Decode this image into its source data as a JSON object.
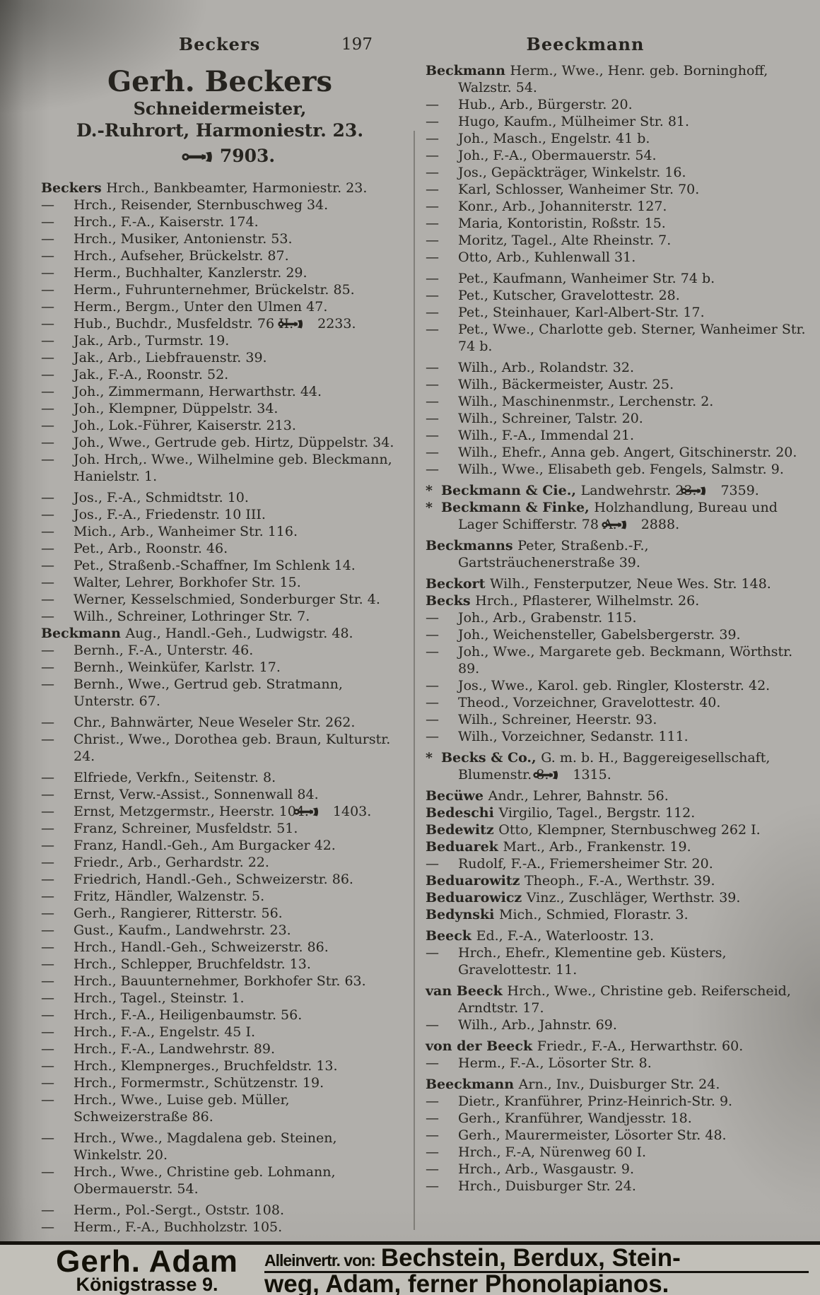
{
  "page": {
    "left_running_title": "Beckers",
    "page_number": "197",
    "right_running_title": "Beeckmann"
  },
  "colors": {
    "paper": "#b1afab",
    "ink": "#26241f",
    "ad_background": "#c2c0b9",
    "rule": "#15130e"
  },
  "icons": {
    "phone": "phone-icon"
  },
  "left_column": {
    "ad": {
      "name": "Gerh. Beckers",
      "profession": "Schneidermeister,",
      "address": "D.-Ruhrort, Harmoniestr. 23.",
      "phone": "7903."
    },
    "entries": [
      {
        "lead": "Beckers",
        "text": "Hrch., Bankbeamter, Harmoniestr. 23."
      },
      {
        "dash": true,
        "text": "Hrch., Reisender, Sternbuschweg 34."
      },
      {
        "dash": true,
        "text": "Hrch., F.-A., Kaiserstr. 174."
      },
      {
        "dash": true,
        "text": "Hrch., Musiker, Antonienstr. 53."
      },
      {
        "dash": true,
        "text": "Hrch., Aufseher, Brückelstr. 87."
      },
      {
        "dash": true,
        "text": "Herm., Buchhalter, Kanzlerstr. 29."
      },
      {
        "dash": true,
        "text": "Herm., Fuhrunternehmer, Brückelstr. 85."
      },
      {
        "dash": true,
        "text": "Herm., Bergm., Unter den Ulmen 47."
      },
      {
        "dash": true,
        "text": "Hub., Buchdr., Musfeldstr. 76 II.",
        "phone": "2233."
      },
      {
        "dash": true,
        "text": "Jak., Arb., Turmstr. 19."
      },
      {
        "dash": true,
        "text": "Jak., Arb., Liebfrauenstr. 39."
      },
      {
        "dash": true,
        "text": "Jak., F.-A., Roonstr. 52."
      },
      {
        "dash": true,
        "text": "Joh., Zimmermann, Herwarthstr. 44."
      },
      {
        "dash": true,
        "text": "Joh., Klempner, Düppelstr. 34."
      },
      {
        "dash": true,
        "text": "Joh., Lok.-Führer, Kaiserstr. 213."
      },
      {
        "dash": true,
        "text": "Joh., Wwe., Gertrude geb. Hirtz, Düppelstr. 34."
      },
      {
        "dash": true,
        "text": "Joh. Hrch,. Wwe., Wilhelmine geb. Bleckmann, Hanielstr. 1."
      },
      {
        "dash": true,
        "gap": true,
        "text": "Jos., F.-A., Schmidtstr. 10."
      },
      {
        "dash": true,
        "text": "Jos., F.-A., Friedenstr. 10 III."
      },
      {
        "dash": true,
        "text": "Mich., Arb., Wanheimer Str. 116."
      },
      {
        "dash": true,
        "text": "Pet., Arb., Roonstr. 46."
      },
      {
        "dash": true,
        "text": "Pet., Straßenb.-Schaffner, Im Schlenk 14."
      },
      {
        "dash": true,
        "text": "Walter, Lehrer, Borkhofer Str. 15."
      },
      {
        "dash": true,
        "text": "Werner, Kesselschmied, Sonderburger Str. 4."
      },
      {
        "dash": true,
        "text": "Wilh., Schreiner, Lothringer Str. 7."
      },
      {
        "lead": "Beckmann",
        "text": "Aug., Handl.-Geh., Ludwigstr. 48."
      },
      {
        "dash": true,
        "text": "Bernh., F.-A., Unterstr. 46."
      },
      {
        "dash": true,
        "text": "Bernh., Weinküfer, Karlstr. 17."
      },
      {
        "dash": true,
        "text": "Bernh., Wwe., Gertrud geb. Stratmann, Unterstr. 67."
      },
      {
        "dash": true,
        "gap": true,
        "text": "Chr., Bahnwärter, Neue Weseler Str. 262."
      },
      {
        "dash": true,
        "text": "Christ., Wwe., Dorothea geb. Braun, Kulturstr. 24."
      },
      {
        "dash": true,
        "gap": true,
        "text": "Elfriede, Verkfn., Seitenstr. 8."
      },
      {
        "dash": true,
        "text": "Ernst, Verw.-Assist., Sonnenwall 84."
      },
      {
        "dash": true,
        "text": "Ernst, Metzgermstr., Heerstr. 104.",
        "phone": "1403."
      },
      {
        "dash": true,
        "text": "Franz, Schreiner, Musfeldstr. 51."
      },
      {
        "dash": true,
        "text": "Franz, Handl.-Geh., Am Burgacker 42."
      },
      {
        "dash": true,
        "text": "Friedr., Arb., Gerhardstr. 22."
      },
      {
        "dash": true,
        "text": "Friedrich, Handl.-Geh., Schweizerstr. 86."
      },
      {
        "dash": true,
        "text": "Fritz, Händler, Walzenstr. 5."
      },
      {
        "dash": true,
        "text": "Gerh., Rangierer, Ritterstr. 56."
      },
      {
        "dash": true,
        "text": "Gust., Kaufm., Landwehrstr. 23."
      },
      {
        "dash": true,
        "text": "Hrch., Handl.-Geh., Schweizerstr. 86."
      },
      {
        "dash": true,
        "text": "Hrch., Schlepper, Bruchfeldstr. 13."
      },
      {
        "dash": true,
        "text": "Hrch., Bauunternehmer, Borkhofer Str. 63."
      },
      {
        "dash": true,
        "text": "Hrch., Tagel., Steinstr. 1."
      },
      {
        "dash": true,
        "text": "Hrch., F.-A., Heiligenbaumstr. 56."
      },
      {
        "dash": true,
        "text": "Hrch., F.-A., Engelstr. 45 I."
      },
      {
        "dash": true,
        "text": "Hrch., F.-A., Landwehrstr. 89."
      },
      {
        "dash": true,
        "text": "Hrch., Klempnerges., Bruchfeldstr. 13."
      },
      {
        "dash": true,
        "text": "Hrch., Formermstr., Schützenstr. 19."
      },
      {
        "dash": true,
        "text": "Hrch., Wwe., Luise geb. Müller, Schweizerstraße 86."
      },
      {
        "dash": true,
        "gap": true,
        "text": "Hrch., Wwe., Magdalena geb. Steinen, Winkelstr. 20."
      },
      {
        "dash": true,
        "text": "Hrch., Wwe., Christine geb. Lohmann, Obermauerstr. 54."
      },
      {
        "dash": true,
        "gap": true,
        "text": "Herm., Pol.-Sergt., Oststr. 108."
      },
      {
        "dash": true,
        "text": "Herm., F.-A., Buchholzstr. 105."
      }
    ]
  },
  "right_column": {
    "entries": [
      {
        "lead": "Beckmann",
        "text": "Herm., Wwe., Henr. geb. Borninghoff, Walzstr. 54."
      },
      {
        "dash": true,
        "text": "Hub., Arb., Bürgerstr. 20."
      },
      {
        "dash": true,
        "text": "Hugo, Kaufm., Mülheimer Str. 81."
      },
      {
        "dash": true,
        "text": "Joh., Masch., Engelstr. 41 b."
      },
      {
        "dash": true,
        "text": "Joh., F.-A., Obermauerstr. 54."
      },
      {
        "dash": true,
        "text": "Jos., Gepäckträger, Winkelstr. 16."
      },
      {
        "dash": true,
        "text": "Karl, Schlosser, Wanheimer Str. 70."
      },
      {
        "dash": true,
        "text": "Konr., Arb., Johanniterstr. 127."
      },
      {
        "dash": true,
        "text": "Maria, Kontoristin, Roßstr. 15."
      },
      {
        "dash": true,
        "text": "Moritz, Tagel., Alte Rheinstr. 7."
      },
      {
        "dash": true,
        "text": "Otto, Arb., Kuhlenwall 31."
      },
      {
        "dash": true,
        "gap": true,
        "text": "Pet., Kaufmann, Wanheimer Str. 74 b."
      },
      {
        "dash": true,
        "text": "Pet., Kutscher, Gravelottestr. 28."
      },
      {
        "dash": true,
        "text": "Pet., Steinhauer, Karl-Albert-Str. 17."
      },
      {
        "dash": true,
        "text": "Pet., Wwe., Charlotte geb. Sterner, Wanheimer Str. 74 b."
      },
      {
        "dash": true,
        "gap": true,
        "text": "Wilh., Arb., Rolandstr. 32."
      },
      {
        "dash": true,
        "text": "Wilh., Bäckermeister, Austr. 25."
      },
      {
        "dash": true,
        "text": "Wilh., Maschinenmstr., Lerchenstr. 2."
      },
      {
        "dash": true,
        "text": "Wilh., Schreiner, Talstr. 20."
      },
      {
        "dash": true,
        "text": "Wilh., F.-A., Immendal 21."
      },
      {
        "dash": true,
        "text": "Wilh., Ehefr., Anna geb. Angert, Gitschinerstr. 20."
      },
      {
        "dash": true,
        "text": "Wilh., Wwe., Elisabeth geb. Fengels, Salmstr. 9."
      },
      {
        "star": true,
        "gap": true,
        "lead": "Beckmann & Cie.,",
        "text": "Landwehrstr. 23.",
        "phone": "7359."
      },
      {
        "star": true,
        "lead": "Beckmann & Finke,",
        "text": "Holzhandlung, Bureau und Lager Schifferstr. 78 A.",
        "phone": "2888."
      },
      {
        "lead": "Beckmanns",
        "gap": true,
        "text": "Peter, Straßenb.-F., Gartsträuchenerstraße 39."
      },
      {
        "lead": "Beckort",
        "gap": true,
        "text": "Wilh., Fensterputzer, Neue Wes. Str. 148."
      },
      {
        "lead": "Becks",
        "text": "Hrch., Pflasterer, Wilhelmstr. 26."
      },
      {
        "dash": true,
        "text": "Joh., Arb., Grabenstr. 115."
      },
      {
        "dash": true,
        "text": "Joh., Weichensteller, Gabelsbergerstr. 39."
      },
      {
        "dash": true,
        "text": "Joh., Wwe., Margarete geb. Beckmann, Wörthstr. 89."
      },
      {
        "dash": true,
        "text": "Jos., Wwe., Karol. geb. Ringler, Klosterstr. 42."
      },
      {
        "dash": true,
        "text": "Theod., Vorzeichner, Gravelottestr. 40."
      },
      {
        "dash": true,
        "text": "Wilh., Schreiner, Heerstr. 93."
      },
      {
        "dash": true,
        "text": "Wilh., Vorzeichner, Sedanstr. 111."
      },
      {
        "star": true,
        "gap": true,
        "lead": "Becks & Co.,",
        "text": "G. m. b. H., Baggereigesellschaft, Blumenstr. 8.",
        "phone": "1315."
      },
      {
        "lead": "Becüwe",
        "gap": true,
        "text": "Andr., Lehrer, Bahnstr. 56."
      },
      {
        "lead": "Bedeschi",
        "text": "Virgilio, Tagel., Bergstr. 112."
      },
      {
        "lead": "Bedewitz",
        "text": "Otto, Klempner, Sternbuschweg 262 I."
      },
      {
        "lead": "Beduarek",
        "text": "Mart., Arb., Frankenstr. 19."
      },
      {
        "dash": true,
        "text": "Rudolf, F.-A., Friemersheimer Str. 20."
      },
      {
        "lead": "Beduarowitz",
        "text": "Theoph., F.-A., Werthstr. 39."
      },
      {
        "lead": "Beduarowicz",
        "text": "Vinz., Zuschläger, Werthstr. 39."
      },
      {
        "lead": "Bedynski",
        "text": "Mich., Schmied, Florastr. 3."
      },
      {
        "lead": "Beeck",
        "gap": true,
        "text": "Ed., F.-A., Waterloostr. 13."
      },
      {
        "dash": true,
        "text": "Hrch., Ehefr., Klementine geb. Küsters, Gravelottestr. 11."
      },
      {
        "lead": "van Beeck",
        "gap": true,
        "text": "Hrch., Wwe., Christine geb. Reiferscheid, Arndtstr. 17."
      },
      {
        "dash": true,
        "text": "Wilh., Arb., Jahnstr. 69."
      },
      {
        "lead": "von der Beeck",
        "gap": true,
        "text": "Friedr., F.-A., Herwarthstr. 60."
      },
      {
        "dash": true,
        "text": "Herm., F.-A., Lösorter Str. 8."
      },
      {
        "lead": "Beeckmann",
        "gap": true,
        "text": "Arn., Inv., Duisburger Str. 24."
      },
      {
        "dash": true,
        "text": "Dietr., Kranführer, Prinz-Heinrich-Str. 9."
      },
      {
        "dash": true,
        "text": "Gerh., Kranführer, Wandjesstr. 18."
      },
      {
        "dash": true,
        "text": "Gerh., Maurermeister, Lösorter Str. 48."
      },
      {
        "dash": true,
        "text": "Hrch., F.-A, Nürenweg 60 I."
      },
      {
        "dash": true,
        "text": "Hrch., Arb., Wasgaustr. 9."
      },
      {
        "dash": true,
        "text": "Hrch., Duisburger Str. 24."
      }
    ]
  },
  "bottom_ad": {
    "advertiser": "Gerh. Adam",
    "address": "Königstrasse 9.",
    "line1_prefix": "Alleinvertr. von:",
    "line1": "Bechstein, Berdux, Stein-",
    "line2": "weg, Adam, ferner Phonolapianos."
  }
}
